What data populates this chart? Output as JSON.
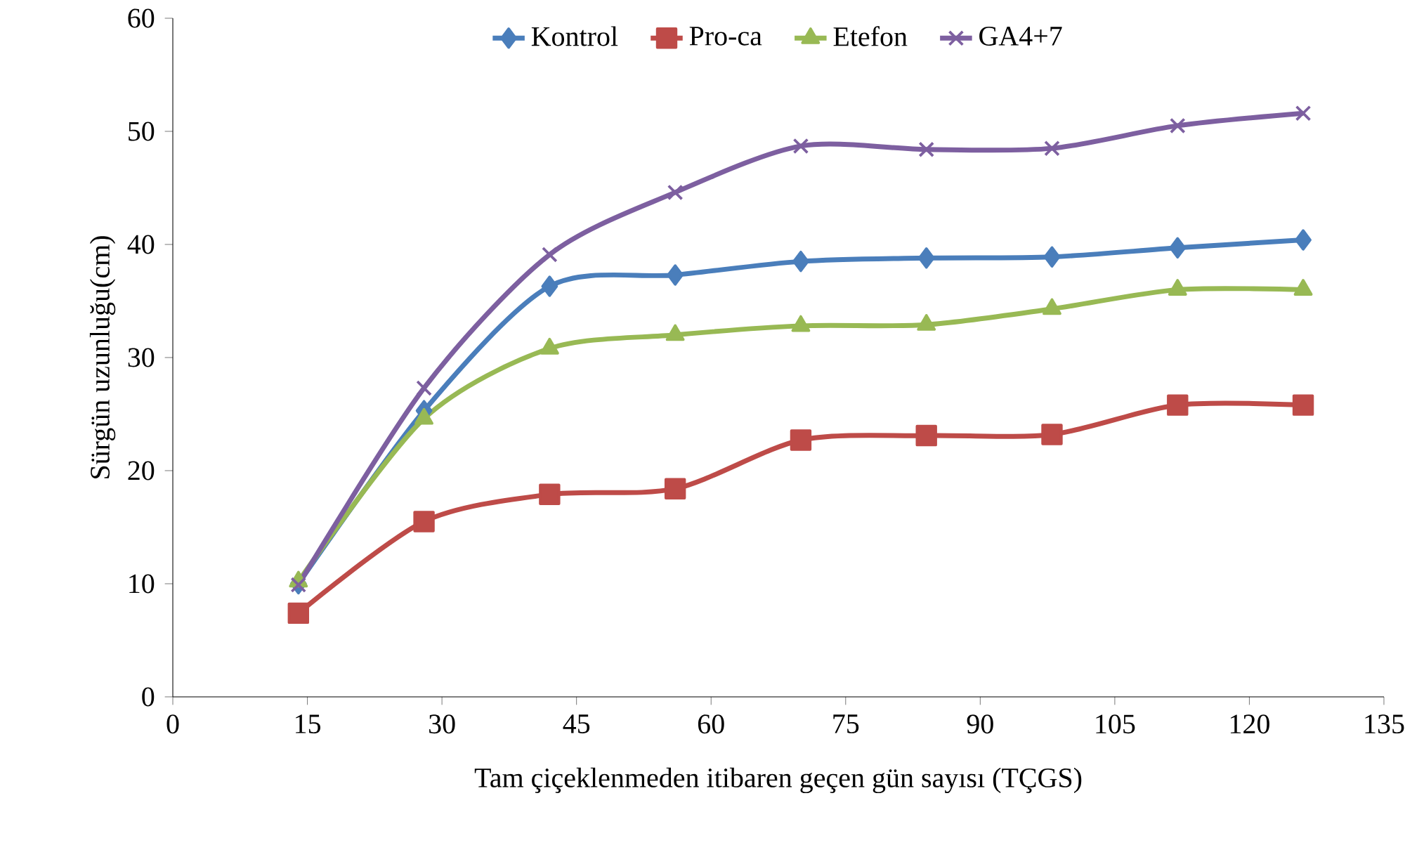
{
  "chart_data": {
    "type": "line",
    "xlabel": "Tam çiçeklenmeden itibaren geçen gün sayısı (TÇGS)",
    "ylabel": "Sürgün uzunluğu(cm)",
    "x": [
      14,
      28,
      42,
      56,
      70,
      84,
      98,
      112,
      126
    ],
    "xlim": [
      0,
      135
    ],
    "xticks": [
      0,
      15,
      30,
      45,
      60,
      75,
      90,
      105,
      120,
      135
    ],
    "ylim": [
      0,
      60
    ],
    "yticks": [
      0,
      10,
      20,
      30,
      40,
      50,
      60
    ],
    "grid": false,
    "legend": "top",
    "line_style": "solid",
    "series": [
      {
        "name": "Kontrol",
        "color": "#4a7ebb",
        "marker": "diamond",
        "values": [
          10.0,
          25.3,
          36.3,
          37.3,
          38.5,
          38.8,
          38.9,
          39.7,
          40.4
        ]
      },
      {
        "name": "Pro-ca",
        "color": "#be4b48",
        "marker": "square",
        "values": [
          7.4,
          15.5,
          17.9,
          18.4,
          22.7,
          23.1,
          23.2,
          25.8,
          25.8
        ]
      },
      {
        "name": "Etefon",
        "color": "#98b954",
        "marker": "triangle",
        "values": [
          10.2,
          24.6,
          30.8,
          32.0,
          32.8,
          32.9,
          34.3,
          36.0,
          36.0
        ]
      },
      {
        "name": "GA4+7",
        "color": "#7d5fa0",
        "marker": "cross",
        "values": [
          9.9,
          27.3,
          39.1,
          44.6,
          48.7,
          48.4,
          48.5,
          50.5,
          51.6
        ]
      }
    ]
  }
}
